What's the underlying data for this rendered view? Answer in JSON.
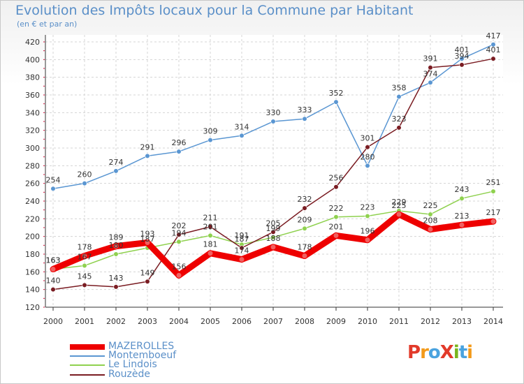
{
  "title": "Evolution des Impôts locaux pour la Commune par Habitant",
  "subtitle": "(en € et par an)",
  "logo": {
    "text": "ProXiti",
    "colors": [
      "#e23a2a",
      "#f39a1a",
      "#4aa3df",
      "#e23a2a",
      "#7ab51d",
      "#4aa3df",
      "#f39a1a"
    ]
  },
  "chart_data": {
    "type": "line",
    "categories": [
      "2000",
      "2001",
      "2002",
      "2003",
      "2004",
      "2005",
      "2006",
      "2007",
      "2008",
      "2009",
      "2010",
      "2011",
      "2012",
      "2013",
      "2014"
    ],
    "ylim": [
      120,
      420
    ],
    "yticks": [
      120,
      140,
      160,
      180,
      200,
      220,
      240,
      260,
      280,
      300,
      320,
      340,
      360,
      380,
      400,
      420
    ],
    "series": [
      {
        "name": "MAZEROLLES",
        "color": "#ee0000",
        "values": [
          163,
          178,
          189,
          193,
          156,
          181,
          174,
          188,
          178,
          201,
          196,
          225,
          208,
          213,
          217
        ]
      },
      {
        "name": "Montemboeuf",
        "color": "#5a96d2",
        "values": [
          254,
          260,
          274,
          291,
          296,
          309,
          314,
          330,
          333,
          352,
          280,
          358,
          374,
          401,
          417
        ]
      },
      {
        "name": "Le Lindois",
        "color": "#8fd14f",
        "values": [
          163,
          167,
          180,
          187,
          194,
          201,
          191,
          199,
          209,
          222,
          223,
          229,
          225,
          243,
          251
        ]
      },
      {
        "name": "Rouzède",
        "color": "#7a1c22",
        "values": [
          140,
          145,
          143,
          149,
          202,
          211,
          187,
          205,
          232,
          256,
          301,
          323,
          391,
          394,
          401
        ]
      }
    ]
  }
}
